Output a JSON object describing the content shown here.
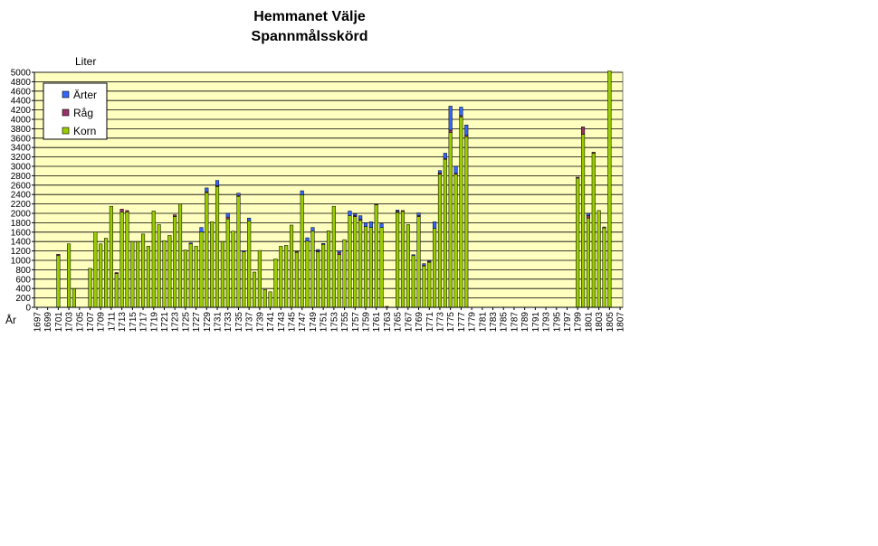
{
  "chart_data": {
    "type": "bar",
    "stacked": true,
    "title": "Hemmanet Välje",
    "subtitle": "Spannmålsskörd",
    "ylabel": "Liter",
    "xlabel": "År",
    "ylim": [
      0,
      5000
    ],
    "ytick_step": 200,
    "grid": true,
    "legend_position": "top-left",
    "plot_background": "#FFFFC0",
    "x_start": 1697,
    "x_end": 1807,
    "x_tick_labels": [
      1697,
      1699,
      1701,
      1703,
      1705,
      1707,
      1709,
      1711,
      1713,
      1715,
      1717,
      1719,
      1721,
      1723,
      1725,
      1727,
      1729,
      1731,
      1733,
      1735,
      1737,
      1739,
      1741,
      1743,
      1745,
      1747,
      1749,
      1751,
      1753,
      1755,
      1757,
      1759,
      1761,
      1763,
      1765,
      1767,
      1769,
      1771,
      1773,
      1775,
      1777,
      1779,
      1781,
      1783,
      1785,
      1787,
      1789,
      1791,
      1793,
      1795,
      1797,
      1799,
      1801,
      1803,
      1805,
      1807
    ],
    "series": [
      {
        "name": "Korn",
        "color": "#99CC00",
        "values": {
          "1701": 1100,
          "1703": 1350,
          "1704": 400,
          "1707": 830,
          "1708": 1600,
          "1709": 1350,
          "1710": 1470,
          "1711": 2150,
          "1712": 720,
          "1713": 2030,
          "1714": 2030,
          "1715": 1400,
          "1716": 1400,
          "1717": 1560,
          "1718": 1300,
          "1719": 2050,
          "1720": 1760,
          "1721": 1420,
          "1722": 1530,
          "1723": 1930,
          "1724": 2200,
          "1725": 1220,
          "1726": 1350,
          "1727": 1300,
          "1728": 1600,
          "1729": 2440,
          "1730": 1820,
          "1731": 2570,
          "1732": 1400,
          "1733": 1880,
          "1734": 1620,
          "1735": 2360,
          "1736": 1180,
          "1737": 1840,
          "1738": 750,
          "1739": 1210,
          "1740": 380,
          "1741": 330,
          "1742": 1030,
          "1743": 1300,
          "1744": 1320,
          "1745": 1750,
          "1746": 1170,
          "1747": 2390,
          "1748": 1410,
          "1749": 1620,
          "1750": 1180,
          "1751": 1340,
          "1752": 1630,
          "1753": 2150,
          "1754": 1120,
          "1755": 1440,
          "1756": 1950,
          "1757": 1930,
          "1758": 1850,
          "1759": 1720,
          "1760": 1700,
          "1761": 2180,
          "1762": 1700,
          "1765": 2020,
          "1766": 2040,
          "1767": 1760,
          "1768": 1100,
          "1769": 1930,
          "1770": 880,
          "1771": 960,
          "1772": 1680,
          "1773": 2830,
          "1774": 3150,
          "1775": 3720,
          "1776": 2830,
          "1777": 4050,
          "1778": 3630,
          "1799": 2750,
          "1800": 3680,
          "1801": 1900,
          "1802": 3280,
          "1803": 2060,
          "1804": 1690,
          "1805": 5030
        }
      },
      {
        "name": "Råg",
        "color": "#993366",
        "values": {
          "1701": 30,
          "1712": 20,
          "1713": 60,
          "1714": 30,
          "1723": 40,
          "1729": 20,
          "1731": 20,
          "1733": 40,
          "1735": 20,
          "1746": 20,
          "1750": 20,
          "1754": 40,
          "1757": 20,
          "1758": 20,
          "1761": 20,
          "1763": 20,
          "1765": 20,
          "1766": 20,
          "1769": 20,
          "1770": 20,
          "1771": 20,
          "1773": 30,
          "1774": 20,
          "1775": 50,
          "1776": 20,
          "1777": 30,
          "1778": 30,
          "1799": 20,
          "1800": 160,
          "1801": 50,
          "1802": 20,
          "1804": 20
        }
      },
      {
        "name": "Ärter",
        "color": "#3366FF",
        "values": {
          "1726": 20,
          "1728": 100,
          "1729": 80,
          "1731": 110,
          "1733": 80,
          "1735": 50,
          "1736": 20,
          "1737": 60,
          "1747": 90,
          "1748": 70,
          "1749": 80,
          "1750": 30,
          "1751": 20,
          "1754": 40,
          "1756": 100,
          "1757": 40,
          "1758": 80,
          "1759": 80,
          "1760": 120,
          "1762": 80,
          "1765": 30,
          "1768": 20,
          "1769": 60,
          "1770": 30,
          "1771": 20,
          "1772": 140,
          "1773": 50,
          "1774": 110,
          "1775": 510,
          "1776": 150,
          "1777": 180,
          "1778": 220,
          "1801": 50
        }
      }
    ]
  }
}
